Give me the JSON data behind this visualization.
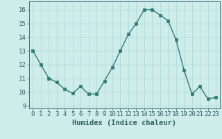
{
  "x": [
    0,
    1,
    2,
    3,
    4,
    5,
    6,
    7,
    8,
    9,
    10,
    11,
    12,
    13,
    14,
    15,
    16,
    17,
    18,
    19,
    20,
    21,
    22,
    23
  ],
  "y": [
    13,
    12,
    11,
    10.7,
    10.2,
    9.9,
    10.4,
    9.85,
    9.85,
    10.8,
    11.8,
    13.0,
    14.2,
    15.0,
    16.0,
    16.0,
    15.6,
    15.2,
    13.8,
    11.6,
    9.85,
    10.4,
    9.5,
    9.6
  ],
  "line_color": "#2e7d6e",
  "marker_color": "#2e7d6e",
  "bg_color": "#ceecea",
  "grid_color": "#a8d8d4",
  "xlabel": "Humidex (Indice chaleur)",
  "xlim": [
    -0.5,
    23.5
  ],
  "ylim": [
    8.8,
    16.6
  ],
  "yticks": [
    9,
    10,
    11,
    12,
    13,
    14,
    15,
    16
  ],
  "xticks": [
    0,
    1,
    2,
    3,
    4,
    5,
    6,
    7,
    8,
    9,
    10,
    11,
    12,
    13,
    14,
    15,
    16,
    17,
    18,
    19,
    20,
    21,
    22,
    23
  ],
  "font_color": "#2e6060",
  "xlabel_fontsize": 7.5,
  "tick_fontsize": 6.5,
  "linewidth": 1.0,
  "markersize": 2.5
}
